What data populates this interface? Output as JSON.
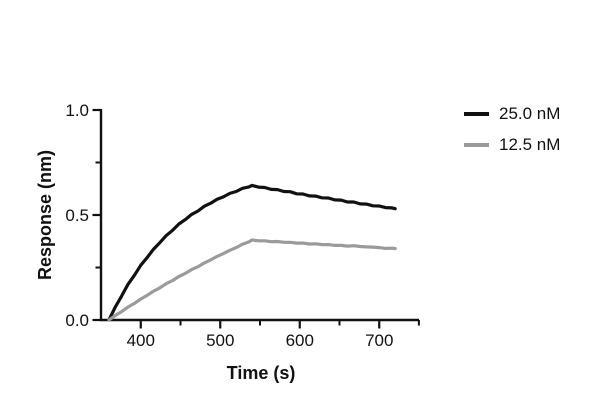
{
  "chart_data": {
    "type": "line",
    "title": "",
    "xlabel": "Time (s)",
    "ylabel": "Response (nm)",
    "xlim": [
      350,
      750
    ],
    "ylim": [
      0.0,
      1.0
    ],
    "grid": false,
    "legend_position": "right-outside",
    "axis_color": "#111111",
    "x_major_ticks": [
      400,
      500,
      600,
      700
    ],
    "x_minor_ticks": [
      450,
      550,
      650,
      750
    ],
    "y_major_ticks": [
      0.0,
      0.5,
      1.0
    ],
    "y_minor_ticks": [
      0.25,
      0.75
    ],
    "x_tick_labels": [
      "400",
      "500",
      "600",
      "700"
    ],
    "y_tick_labels": [
      "0.0",
      "0.5",
      "1.0"
    ],
    "phases": {
      "association_start_s": 360,
      "association_end_s": 540,
      "dissociation_end_s": 720
    },
    "x": [
      360,
      368,
      376,
      384,
      392,
      400,
      408,
      416,
      424,
      432,
      440,
      448,
      456,
      464,
      472,
      480,
      488,
      496,
      504,
      512,
      520,
      528,
      536,
      540,
      548,
      556,
      564,
      572,
      580,
      588,
      596,
      604,
      612,
      620,
      628,
      636,
      644,
      652,
      660,
      668,
      676,
      684,
      692,
      700,
      708,
      716,
      720
    ],
    "series": [
      {
        "name": "25.0 nM",
        "color": "#111111",
        "peak_response_nm": 0.64,
        "end_response_nm": 0.53,
        "values": [
          0.0,
          0.062,
          0.115,
          0.17,
          0.213,
          0.261,
          0.297,
          0.337,
          0.368,
          0.402,
          0.427,
          0.457,
          0.478,
          0.503,
          0.519,
          0.542,
          0.556,
          0.575,
          0.586,
          0.603,
          0.612,
          0.627,
          0.634,
          0.641,
          0.633,
          0.631,
          0.622,
          0.621,
          0.612,
          0.611,
          0.601,
          0.6,
          0.591,
          0.59,
          0.582,
          0.581,
          0.572,
          0.571,
          0.562,
          0.562,
          0.553,
          0.552,
          0.544,
          0.543,
          0.535,
          0.534,
          0.53
        ]
      },
      {
        "name": "12.5 nM",
        "color": "#9b9b9b",
        "peak_response_nm": 0.38,
        "end_response_nm": 0.34,
        "values": [
          0.0,
          0.022,
          0.04,
          0.062,
          0.079,
          0.1,
          0.117,
          0.137,
          0.153,
          0.173,
          0.188,
          0.207,
          0.222,
          0.24,
          0.254,
          0.272,
          0.286,
          0.303,
          0.316,
          0.332,
          0.345,
          0.361,
          0.372,
          0.381,
          0.377,
          0.377,
          0.373,
          0.374,
          0.37,
          0.37,
          0.366,
          0.366,
          0.362,
          0.363,
          0.359,
          0.359,
          0.355,
          0.355,
          0.352,
          0.354,
          0.35,
          0.348,
          0.347,
          0.345,
          0.341,
          0.342,
          0.34
        ]
      }
    ]
  }
}
